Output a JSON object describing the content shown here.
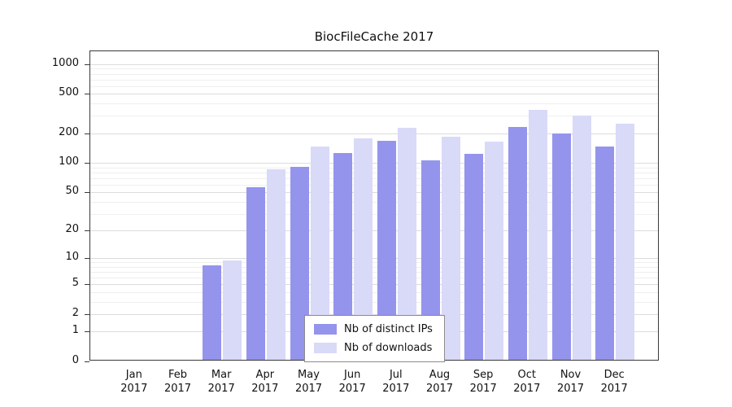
{
  "chart_data": {
    "type": "bar",
    "title": "BiocFileCache 2017",
    "categories": [
      "Jan",
      "Feb",
      "Mar",
      "Apr",
      "May",
      "Jun",
      "Jul",
      "Aug",
      "Sep",
      "Oct",
      "Nov",
      "Dec"
    ],
    "year_label": "2017",
    "series": [
      {
        "name": "Nb of distinct IPs",
        "color": "#9494ed",
        "values": [
          0,
          0,
          8,
          54,
          88,
          122,
          160,
          102,
          120,
          223,
          192,
          141
        ]
      },
      {
        "name": "Nb of downloads",
        "color": "#d9d9f8",
        "values": [
          0,
          0,
          9,
          83,
          140,
          170,
          220,
          178,
          158,
          333,
          292,
          240
        ]
      }
    ],
    "yticks": [
      0,
      1,
      2,
      5,
      10,
      20,
      50,
      100,
      200,
      500,
      1000
    ],
    "y_minor_ticks": [
      3,
      4,
      6,
      7,
      8,
      9,
      30,
      40,
      60,
      70,
      80,
      90,
      300,
      400,
      600,
      700,
      800,
      900
    ],
    "scale": "log(1+x)",
    "y_max_log": 3.13,
    "ylim": [
      0,
      1000
    ],
    "grid": true,
    "legend_position": "inside-bottom-center"
  }
}
